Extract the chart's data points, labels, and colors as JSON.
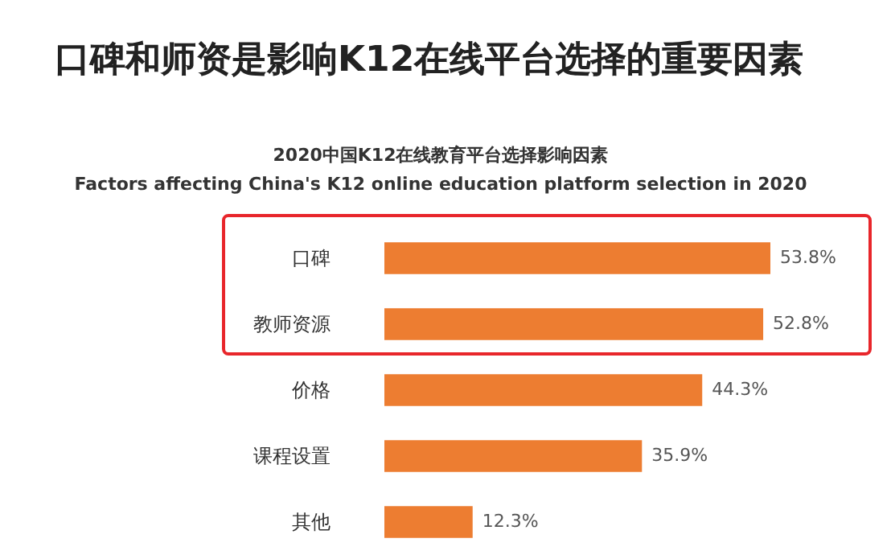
{
  "chart_data": {
    "type": "bar",
    "orientation": "horizontal",
    "title": "口碑和师资是影响K12在线平台选择的重要因素",
    "subtitle": "2020中国K12在线教育平台选择影响因素\nFactors affecting China's K12 online education platform selection in 2020",
    "categories": [
      "口碑",
      "教师资源",
      "价格",
      "课程设置",
      "其他"
    ],
    "values": [
      53.8,
      52.8,
      44.3,
      35.9,
      12.3
    ],
    "value_labels": [
      "53.8%",
      "52.8%",
      "44.3%",
      "35.9%",
      "12.3%"
    ],
    "color": "#ed7d31"
  }
}
